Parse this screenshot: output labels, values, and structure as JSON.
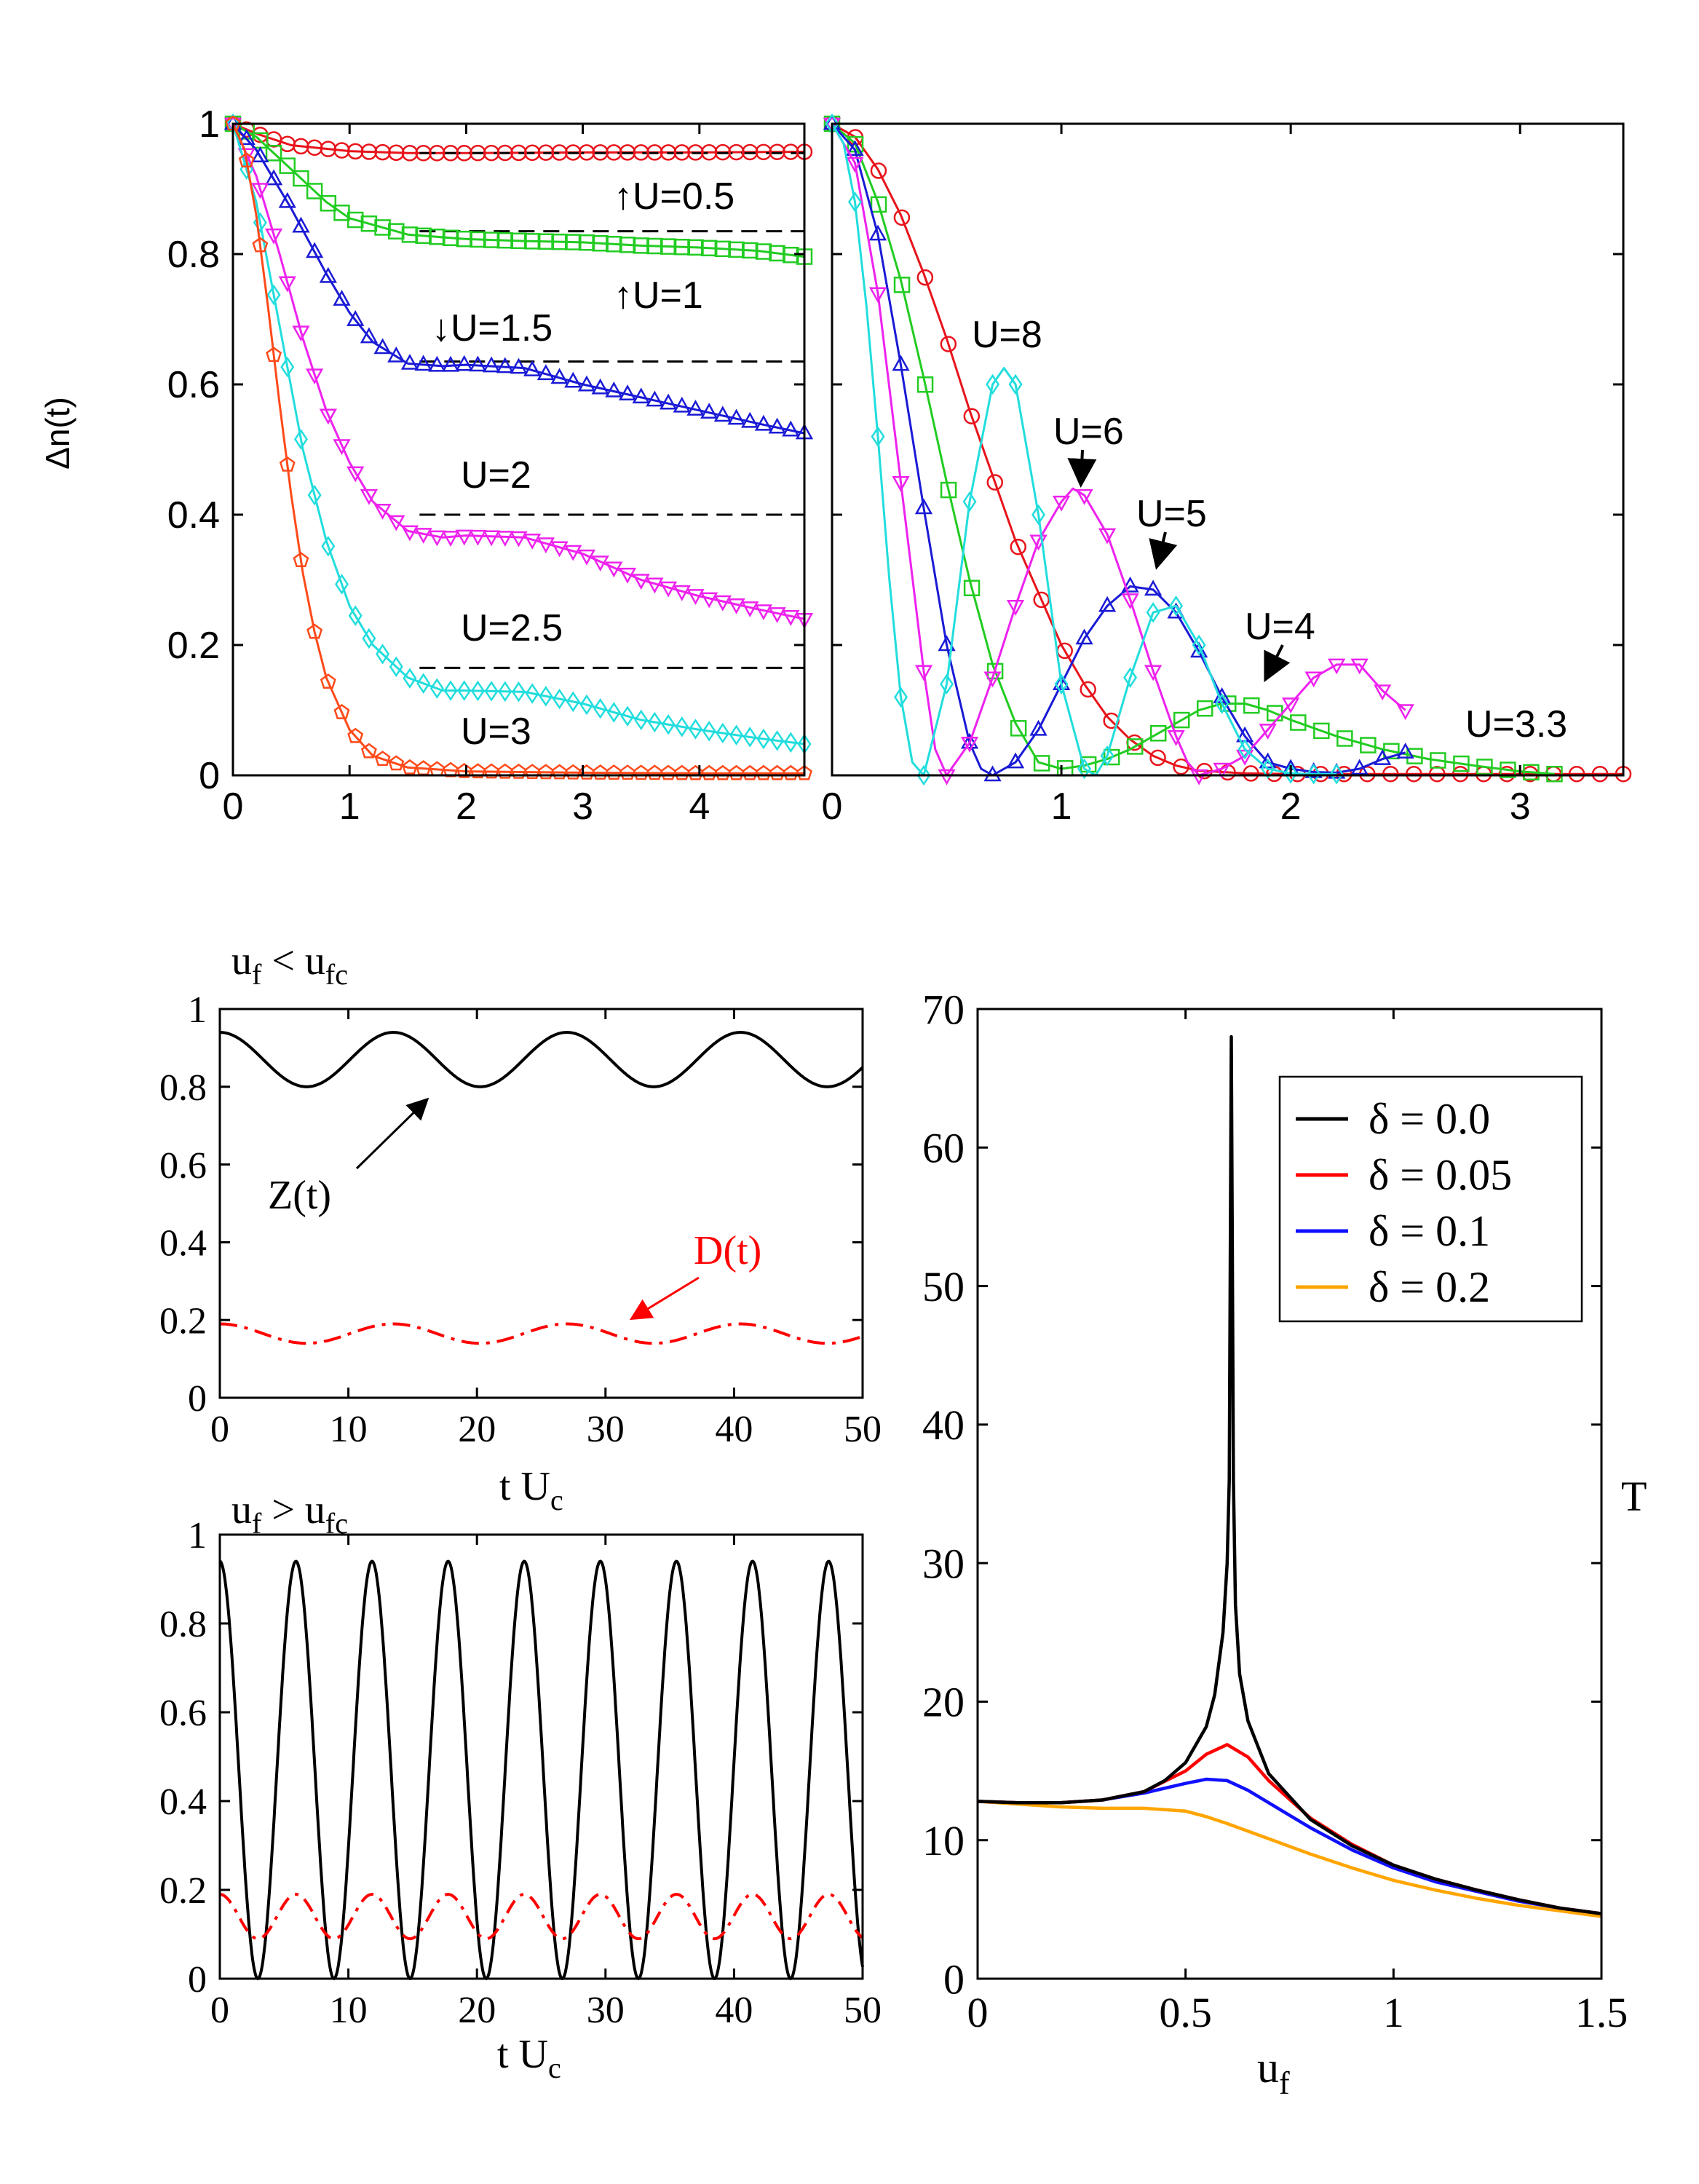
{
  "colors": {
    "black": "#000000",
    "red": "#e8141b",
    "green": "#22cc22",
    "blue": "#1a1ad6",
    "magenta": "#ee22ee",
    "cyan": "#22dddd",
    "orange_red": "#ff4a1a",
    "red_line": "#ff0000",
    "blue_line": "#1010ff",
    "orange": "#ffa500"
  },
  "chart_data": [
    {
      "id": "top_left",
      "type": "line",
      "ylabel": "Δn(t)",
      "xlabel": "",
      "xlim": [
        0,
        4.9
      ],
      "ylim": [
        0,
        1
      ],
      "xticks": [
        "0",
        "1",
        "2",
        "3",
        "4"
      ],
      "yticks": [
        "0",
        "0.2",
        "0.4",
        "0.6",
        "0.8",
        "1"
      ],
      "series": [
        {
          "name": "U=0.5",
          "label": "↑U=0.5",
          "color": "#e8141b",
          "marker": "circle",
          "dashed_level": 0.955,
          "x": [
            0,
            0.2,
            0.5,
            1,
            1.5,
            2,
            3,
            4,
            4.9
          ],
          "y": [
            1,
            0.985,
            0.967,
            0.958,
            0.955,
            0.955,
            0.956,
            0.956,
            0.957
          ]
        },
        {
          "name": "U=1",
          "label": "↑U=1",
          "color": "#22cc22",
          "marker": "square",
          "dashed_level": 0.835,
          "x": [
            0,
            0.2,
            0.5,
            0.8,
            1,
            1.5,
            2,
            2.5,
            3,
            3.5,
            4,
            4.5,
            4.9
          ],
          "y": [
            1,
            0.98,
            0.93,
            0.88,
            0.855,
            0.83,
            0.823,
            0.82,
            0.818,
            0.813,
            0.81,
            0.805,
            0.796
          ]
        },
        {
          "name": "U=1.5",
          "label": "↓U=1.5",
          "color": "#1a1ad6",
          "marker": "triangle-up",
          "dashed_level": 0.635,
          "x": [
            0,
            0.2,
            0.5,
            0.8,
            1,
            1.2,
            1.5,
            1.8,
            2,
            2.5,
            3,
            3.5,
            4,
            4.5,
            4.9
          ],
          "y": [
            1,
            0.96,
            0.87,
            0.77,
            0.71,
            0.665,
            0.632,
            0.628,
            0.63,
            0.625,
            0.6,
            0.58,
            0.56,
            0.54,
            0.525
          ]
        },
        {
          "name": "U=2",
          "label": "U=2",
          "color": "#ee22ee",
          "marker": "triangle-down",
          "dashed_level": 0.4,
          "x": [
            0,
            0.2,
            0.4,
            0.6,
            0.8,
            1,
            1.2,
            1.5,
            1.8,
            2,
            2.5,
            3,
            3.5,
            4,
            4.5,
            4.9
          ],
          "y": [
            1,
            0.92,
            0.8,
            0.67,
            0.56,
            0.48,
            0.42,
            0.375,
            0.365,
            0.368,
            0.365,
            0.34,
            0.3,
            0.275,
            0.255,
            0.24
          ]
        },
        {
          "name": "U=2.5",
          "label": "U=2.5",
          "color": "#22dddd",
          "marker": "diamond",
          "dashed_level": 0.165,
          "x": [
            0,
            0.2,
            0.4,
            0.6,
            0.8,
            1,
            1.2,
            1.5,
            1.8,
            2,
            2.5,
            3,
            3.5,
            4,
            4.5,
            4.9
          ],
          "y": [
            1,
            0.88,
            0.69,
            0.5,
            0.36,
            0.26,
            0.2,
            0.15,
            0.13,
            0.13,
            0.128,
            0.11,
            0.085,
            0.07,
            0.057,
            0.048
          ]
        },
        {
          "name": "U=3",
          "label": "U=3",
          "color": "#ff4a1a",
          "marker": "pentagon",
          "x": [
            0,
            0.1,
            0.2,
            0.3,
            0.4,
            0.5,
            0.6,
            0.7,
            0.8,
            1,
            1.2,
            1.5,
            2,
            3,
            4,
            4.9
          ],
          "y": [
            1,
            0.96,
            0.86,
            0.72,
            0.57,
            0.43,
            0.31,
            0.22,
            0.15,
            0.07,
            0.03,
            0.012,
            0.006,
            0.004,
            0.003,
            0.003
          ]
        }
      ]
    },
    {
      "id": "top_right",
      "type": "line",
      "xlabel": "",
      "xlim": [
        0,
        3.45
      ],
      "ylim": [
        0,
        1
      ],
      "xticks": [
        "0",
        "1",
        "2",
        "3"
      ],
      "series": [
        {
          "name": "U=3.3",
          "label": "U=3.3",
          "color": "#e8141b",
          "marker": "circle",
          "x": [
            0,
            0.1,
            0.2,
            0.3,
            0.4,
            0.5,
            0.6,
            0.7,
            0.8,
            0.9,
            1,
            1.1,
            1.2,
            1.3,
            1.4,
            1.5,
            1.6,
            1.8,
            2,
            2.5,
            3,
            3.45
          ],
          "y": [
            1,
            0.98,
            0.93,
            0.86,
            0.77,
            0.67,
            0.56,
            0.46,
            0.36,
            0.28,
            0.2,
            0.14,
            0.09,
            0.055,
            0.03,
            0.015,
            0.007,
            0.003,
            0.002,
            0.002,
            0.002,
            0.002
          ]
        },
        {
          "name": "U=4",
          "label": "U=4",
          "color": "#22cc22",
          "marker": "square",
          "x": [
            0,
            0.1,
            0.2,
            0.3,
            0.4,
            0.5,
            0.6,
            0.7,
            0.8,
            0.9,
            1,
            1.1,
            1.2,
            1.3,
            1.4,
            1.5,
            1.6,
            1.7,
            1.8,
            1.9,
            2,
            2.2,
            2.4,
            2.6,
            2.8,
            3,
            3.15
          ],
          "y": [
            1,
            0.97,
            0.88,
            0.76,
            0.61,
            0.45,
            0.3,
            0.17,
            0.08,
            0.02,
            0.01,
            0.015,
            0.025,
            0.04,
            0.06,
            0.08,
            0.1,
            0.11,
            0.11,
            0.1,
            0.085,
            0.06,
            0.04,
            0.025,
            0.015,
            0.006,
            0.002
          ]
        },
        {
          "name": "U=5",
          "label": "U=5",
          "color": "#1a1ad6",
          "marker": "triangle-up",
          "x": [
            0,
            0.1,
            0.2,
            0.3,
            0.4,
            0.5,
            0.6,
            0.65,
            0.7,
            0.8,
            0.9,
            1,
            1.1,
            1.2,
            1.3,
            1.4,
            1.5,
            1.6,
            1.7,
            1.8,
            1.9,
            2,
            2.1,
            2.2,
            2.3,
            2.4,
            2.5
          ],
          "y": [
            1,
            0.96,
            0.83,
            0.63,
            0.41,
            0.2,
            0.05,
            0.01,
            0.0,
            0.02,
            0.07,
            0.14,
            0.21,
            0.26,
            0.29,
            0.285,
            0.25,
            0.19,
            0.12,
            0.06,
            0.02,
            0.01,
            0.005,
            0.004,
            0.01,
            0.025,
            0.035
          ]
        },
        {
          "name": "U=6",
          "label": "U=6",
          "color": "#ee22ee",
          "marker": "triangle-down",
          "x": [
            0,
            0.1,
            0.2,
            0.3,
            0.4,
            0.45,
            0.5,
            0.6,
            0.7,
            0.8,
            0.9,
            1,
            1.05,
            1.1,
            1.2,
            1.3,
            1.4,
            1.5,
            1.55,
            1.6,
            1.7,
            1.8,
            1.9,
            2,
            2.1,
            2.2,
            2.3,
            2.4,
            2.5
          ],
          "y": [
            1,
            0.94,
            0.74,
            0.45,
            0.16,
            0.04,
            0.0,
            0.05,
            0.15,
            0.26,
            0.36,
            0.42,
            0.44,
            0.43,
            0.37,
            0.27,
            0.16,
            0.06,
            0.02,
            0.0,
            0.01,
            0.03,
            0.07,
            0.11,
            0.15,
            0.17,
            0.17,
            0.13,
            0.1
          ]
        },
        {
          "name": "U=8",
          "label": "U=8",
          "color": "#22dddd",
          "marker": "diamond",
          "x": [
            0,
            0.05,
            0.1,
            0.15,
            0.2,
            0.25,
            0.3,
            0.35,
            0.4,
            0.5,
            0.6,
            0.7,
            0.75,
            0.8,
            0.9,
            1,
            1.1,
            1.15,
            1.2,
            1.3,
            1.4,
            1.5,
            1.6,
            1.7,
            1.8,
            1.9,
            2,
            2.1,
            2.2
          ],
          "y": [
            1,
            0.97,
            0.88,
            0.72,
            0.52,
            0.3,
            0.12,
            0.02,
            0.0,
            0.14,
            0.42,
            0.6,
            0.625,
            0.6,
            0.4,
            0.14,
            0.01,
            0.0,
            0.03,
            0.15,
            0.25,
            0.26,
            0.2,
            0.11,
            0.04,
            0.01,
            0.003,
            0.002,
            0.002
          ]
        }
      ]
    },
    {
      "id": "bottom_left_upper",
      "type": "line",
      "title": "u",
      "xlabel": "t U",
      "xlim": [
        0,
        50
      ],
      "ylim": [
        0,
        1
      ],
      "xticks": [
        "0",
        "10",
        "20",
        "30",
        "40",
        "50"
      ],
      "yticks": [
        "0",
        "0.2",
        "0.4",
        "0.6",
        "0.8",
        "1"
      ],
      "period": 13.5,
      "series": [
        {
          "name": "Z(t)",
          "color": "#000000",
          "style": "solid",
          "mean": 0.87,
          "amplitude": 0.07,
          "phase": 0
        },
        {
          "name": "D(t)",
          "color": "#ff0000",
          "style": "dashdot",
          "mean": 0.165,
          "amplitude": 0.025,
          "phase": 0
        }
      ]
    },
    {
      "id": "bottom_left_lower",
      "type": "line",
      "xlabel": "t U",
      "xlim": [
        0,
        50
      ],
      "ylim": [
        0,
        1
      ],
      "xticks": [
        "0",
        "10",
        "20",
        "30",
        "40",
        "50"
      ],
      "yticks": [
        "0",
        "0.2",
        "0.4",
        "0.6",
        "0.8",
        "1"
      ],
      "period": 5.92,
      "series": [
        {
          "name": "Z(t)",
          "color": "#000000",
          "style": "solid",
          "mean": 0.47,
          "amplitude": 0.47,
          "phase": 0
        },
        {
          "name": "D(t)",
          "color": "#ff0000",
          "style": "dashdot",
          "mean": 0.14,
          "amplitude": 0.05,
          "phase": 0
        }
      ]
    },
    {
      "id": "bottom_right",
      "type": "line",
      "xlabel": "u",
      "ylabel": "T",
      "xlim": [
        0,
        1.5
      ],
      "ylim": [
        0,
        70
      ],
      "xticks": [
        "0",
        "0.5",
        "1",
        "1.5"
      ],
      "yticks": [
        "0",
        "10",
        "20",
        "30",
        "40",
        "50",
        "60",
        "70"
      ],
      "legend_position": "top-right",
      "series": [
        {
          "name": "δ = 0.0",
          "color": "#000000",
          "x": [
            0,
            0.1,
            0.2,
            0.3,
            0.4,
            0.45,
            0.5,
            0.55,
            0.57,
            0.59,
            0.6,
            0.605,
            0.61,
            0.615,
            0.62,
            0.63,
            0.65,
            0.7,
            0.8,
            0.9,
            1,
            1.1,
            1.2,
            1.3,
            1.4,
            1.5
          ],
          "y": [
            12.8,
            12.7,
            12.7,
            12.9,
            13.5,
            14.3,
            15.6,
            18.2,
            20.5,
            25,
            30,
            36,
            68,
            36,
            27,
            22,
            18.6,
            14.8,
            11.5,
            9.6,
            8.2,
            7.2,
            6.4,
            5.7,
            5.1,
            4.7
          ]
        },
        {
          "name": "δ = 0.05",
          "color": "#ff0000",
          "x": [
            0,
            0.1,
            0.2,
            0.3,
            0.4,
            0.5,
            0.55,
            0.6,
            0.65,
            0.7,
            0.8,
            0.9,
            1,
            1.1,
            1.2,
            1.3,
            1.4,
            1.5
          ],
          "y": [
            12.8,
            12.7,
            12.7,
            12.9,
            13.5,
            15,
            16.2,
            16.9,
            16,
            14.3,
            11.6,
            9.7,
            8.2,
            7.2,
            6.4,
            5.7,
            5.1,
            4.7
          ]
        },
        {
          "name": "δ = 0.1",
          "color": "#1010ff",
          "x": [
            0,
            0.1,
            0.2,
            0.3,
            0.4,
            0.5,
            0.55,
            0.6,
            0.65,
            0.7,
            0.8,
            0.9,
            1,
            1.1,
            1.2,
            1.3,
            1.4,
            1.5
          ],
          "y": [
            12.8,
            12.7,
            12.7,
            12.9,
            13.4,
            14.1,
            14.4,
            14.3,
            13.6,
            12.7,
            10.9,
            9.3,
            8,
            7,
            6.3,
            5.6,
            5.1,
            4.7
          ]
        },
        {
          "name": "δ = 0.2",
          "color": "#ffa500",
          "x": [
            0,
            0.1,
            0.2,
            0.3,
            0.4,
            0.5,
            0.55,
            0.6,
            0.7,
            0.8,
            0.9,
            1,
            1.1,
            1.2,
            1.3,
            1.4,
            1.5
          ],
          "y": [
            12.8,
            12.6,
            12.4,
            12.3,
            12.3,
            12.1,
            11.7,
            11.2,
            10.1,
            9,
            8,
            7.1,
            6.4,
            5.8,
            5.3,
            4.9,
            4.5
          ]
        }
      ]
    }
  ],
  "annotations": {
    "uf_less_main": "u",
    "uf_less_sub1": "f",
    "uf_less_op": " < u",
    "uf_less_sub2": "fc",
    "uf_greater_main": "u",
    "uf_greater_sub1": "f",
    "uf_greater_op": " > u",
    "uf_greater_sub2": "fc",
    "tUc_sub": "c",
    "uf_sub": "f",
    "z_label": "Z(t)",
    "d_label": "D(t)"
  }
}
